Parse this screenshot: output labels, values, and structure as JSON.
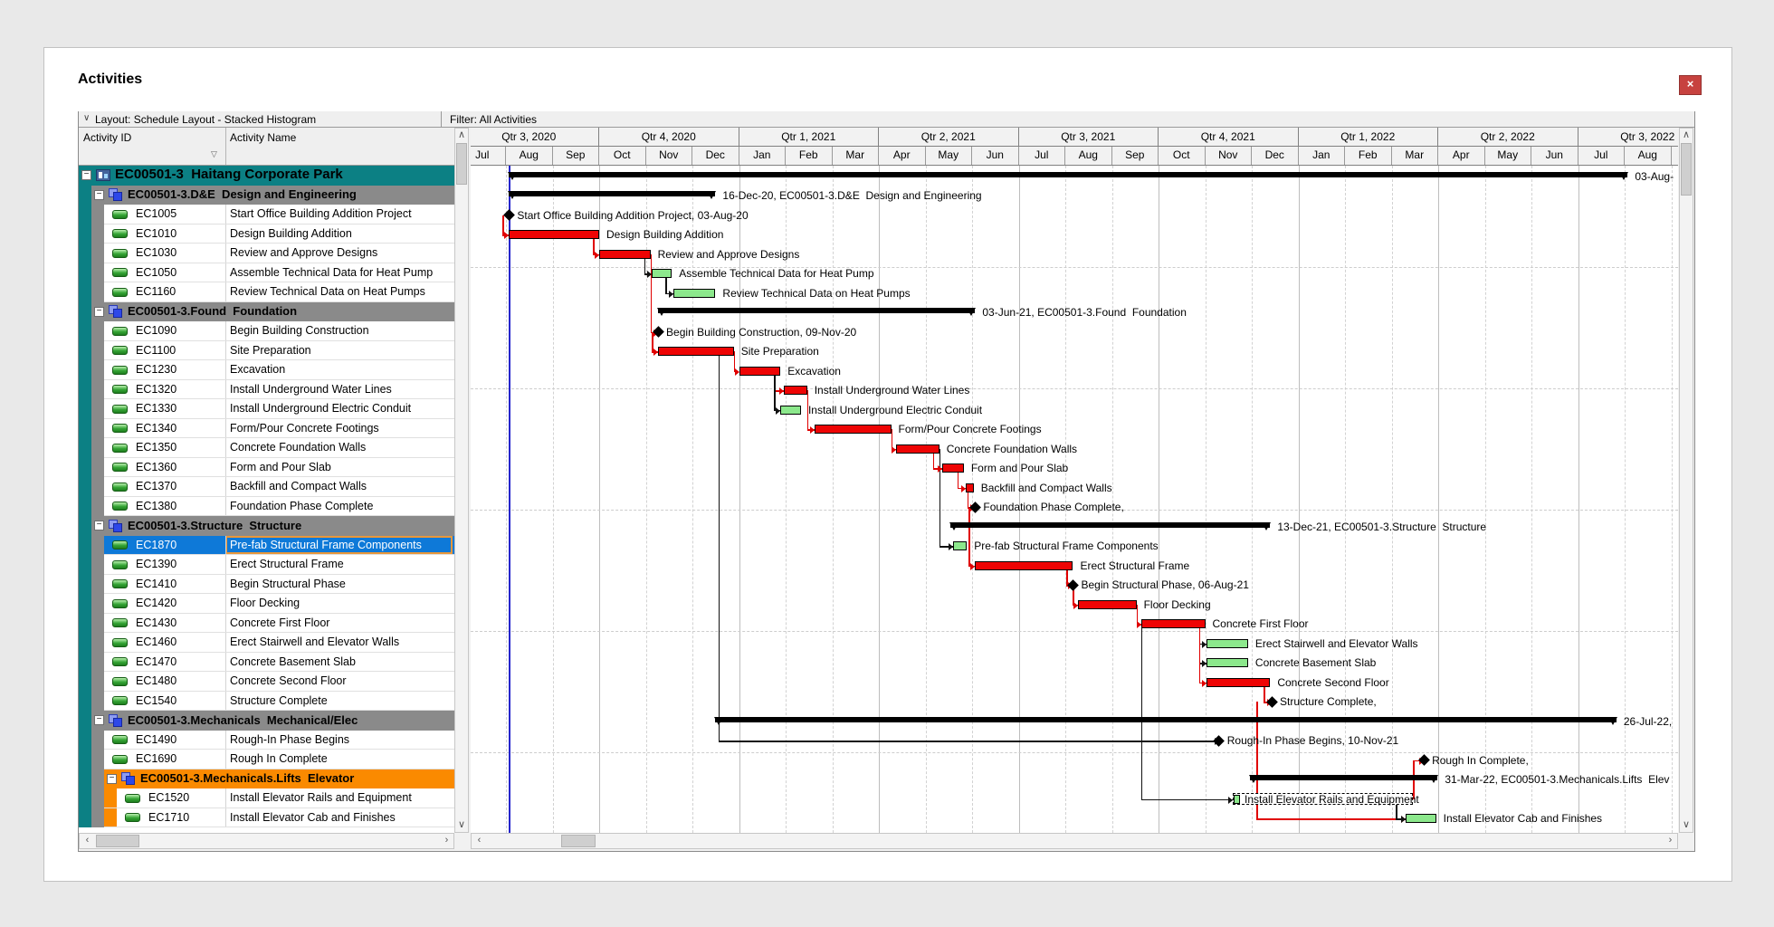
{
  "window": {
    "title": "Activities"
  },
  "glyphs": {
    "close_x": "×",
    "dropdown_chevron": "∨",
    "filter_triangle": "▽",
    "collapse_minus": "−",
    "scroll_up": "∧",
    "scroll_down": "∨",
    "scroll_left": "‹",
    "scroll_right": "›"
  },
  "toolbar": {
    "layout_label": "Layout: Schedule Layout - Stacked Histogram",
    "filter_label": "Filter: All Activities"
  },
  "table": {
    "columns": [
      "Activity ID",
      "Activity Name"
    ],
    "selected_activity": "EC1870"
  },
  "colors": {
    "teal_band": "#0c8084",
    "gray_band": "#8a8a8a",
    "orange_band": "#fa8a00",
    "selected_blue": "#0e79d8",
    "selected_border": "#e8973a",
    "bar_red": "#ee0404",
    "bar_green": "#8ce88c",
    "summary_black": "#000000",
    "data_date_blue": "#2626cc",
    "connector_red": "#e00000",
    "connector_black": "#111111"
  },
  "gantt": {
    "timescale": [
      {
        "label": "Qtr 3, 2020",
        "months": [
          "Jul",
          "Aug",
          "Sep"
        ]
      },
      {
        "label": "Qtr 4, 2020",
        "months": [
          "Oct",
          "Nov",
          "Dec"
        ]
      },
      {
        "label": "Qtr 1, 2021",
        "months": [
          "Jan",
          "Feb",
          "Mar"
        ]
      },
      {
        "label": "Qtr 2, 2021",
        "months": [
          "Apr",
          "May",
          "Jun"
        ]
      },
      {
        "label": "Qtr 3, 2021",
        "months": [
          "Jul",
          "Aug",
          "Sep"
        ]
      },
      {
        "label": "Qtr 4, 2021",
        "months": [
          "Oct",
          "Nov",
          "Dec"
        ]
      },
      {
        "label": "Qtr 1, 2022",
        "months": [
          "Jan",
          "Feb",
          "Mar"
        ]
      },
      {
        "label": "Qtr 2, 2022",
        "months": [
          "Apr",
          "May",
          "Jun"
        ]
      },
      {
        "label": "Qtr 3, 2022",
        "months": [
          "Jul",
          "Aug",
          "Sep"
        ]
      }
    ],
    "data_date": "2020-08-03"
  },
  "rows": [
    {
      "kind": "project",
      "id": "EC00501-3",
      "name": "Haitang Corporate Park",
      "bar": {
        "type": "summary",
        "start": "2020-08-03",
        "end": "2022-08-03",
        "label": "03-Aug-"
      }
    },
    {
      "kind": "wbs",
      "id": "EC00501-3.D&E",
      "name": "Design and Engineering",
      "bar": {
        "type": "summary",
        "start": "2020-08-03",
        "end": "2020-12-16",
        "label": "16-Dec-20, EC00501-3.D&E  Design and Engineering"
      }
    },
    {
      "kind": "act",
      "id": "EC1005",
      "name": "Start Office Building Addition Project",
      "bar": {
        "type": "milestone",
        "start": "2020-08-03",
        "label": "Start Office Building Addition Project, 03-Aug-20"
      }
    },
    {
      "kind": "act",
      "id": "EC1010",
      "name": "Design Building Addition",
      "bar": {
        "type": "bar",
        "color": "red",
        "start": "2020-08-03",
        "end": "2020-10-01",
        "label": "Design Building Addition"
      }
    },
    {
      "kind": "act",
      "id": "EC1030",
      "name": "Review and Approve Designs",
      "bar": {
        "type": "bar",
        "color": "red",
        "start": "2020-10-01",
        "end": "2020-11-04",
        "label": "Review and Approve Designs"
      }
    },
    {
      "kind": "act",
      "id": "EC1050",
      "name": "Assemble Technical Data for Heat Pump",
      "bar": {
        "type": "bar",
        "color": "green",
        "start": "2020-11-05",
        "end": "2020-11-18",
        "label": "Assemble Technical Data for Heat Pump"
      }
    },
    {
      "kind": "act",
      "id": "EC1160",
      "name": "Review Technical Data on Heat Pumps",
      "bar": {
        "type": "bar",
        "color": "green",
        "start": "2020-11-19",
        "end": "2020-12-16",
        "label": "Review Technical Data on Heat Pumps"
      }
    },
    {
      "kind": "wbs",
      "id": "EC00501-3.Found",
      "name": "Foundation",
      "bar": {
        "type": "summary",
        "start": "2020-11-09",
        "end": "2021-06-03",
        "label": "03-Jun-21, EC00501-3.Found  Foundation"
      }
    },
    {
      "kind": "act",
      "id": "EC1090",
      "name": "Begin Building Construction",
      "bar": {
        "type": "milestone",
        "start": "2020-11-09",
        "label": "Begin Building Construction, 09-Nov-20"
      }
    },
    {
      "kind": "act",
      "id": "EC1100",
      "name": "Site Preparation",
      "bar": {
        "type": "bar",
        "color": "red",
        "start": "2020-11-09",
        "end": "2020-12-28",
        "label": "Site Preparation"
      }
    },
    {
      "kind": "act",
      "id": "EC1230",
      "name": "Excavation",
      "bar": {
        "type": "bar",
        "color": "red",
        "start": "2021-01-01",
        "end": "2021-01-28",
        "label": "Excavation"
      }
    },
    {
      "kind": "act",
      "id": "EC1320",
      "name": "Install Underground Water Lines",
      "bar": {
        "type": "bar",
        "color": "red",
        "start": "2021-01-30",
        "end": "2021-02-15",
        "label": "Install Underground Water Lines"
      }
    },
    {
      "kind": "act",
      "id": "EC1330",
      "name": "Install Underground Electric Conduit",
      "bar": {
        "type": "bar",
        "color": "green",
        "start": "2021-01-28",
        "end": "2021-02-11",
        "label": "Install Underground Electric Conduit"
      }
    },
    {
      "kind": "act",
      "id": "EC1340",
      "name": "Form/Pour Concrete Footings",
      "bar": {
        "type": "bar",
        "color": "red",
        "start": "2021-02-20",
        "end": "2021-04-09",
        "label": "Form/Pour Concrete Footings"
      }
    },
    {
      "kind": "act",
      "id": "EC1350",
      "name": "Concrete Foundation Walls",
      "bar": {
        "type": "bar",
        "color": "red",
        "start": "2021-04-12",
        "end": "2021-05-10",
        "label": "Concrete Foundation Walls"
      }
    },
    {
      "kind": "act",
      "id": "EC1360",
      "name": "Form and Pour Slab",
      "bar": {
        "type": "bar",
        "color": "red",
        "start": "2021-05-12",
        "end": "2021-05-26",
        "label": "Form and Pour Slab"
      }
    },
    {
      "kind": "act",
      "id": "EC1370",
      "name": "Backfill and Compact Walls",
      "bar": {
        "type": "bar",
        "color": "red",
        "start": "2021-05-27",
        "end": "2021-06-02",
        "label": "Backfill and Compact Walls"
      }
    },
    {
      "kind": "act",
      "id": "EC1380",
      "name": "Foundation Phase Complete",
      "bar": {
        "type": "milestone",
        "start": "2021-06-03",
        "label": "Foundation Phase Complete,"
      }
    },
    {
      "kind": "wbs",
      "id": "EC00501-3.Structure",
      "name": "Structure",
      "bar": {
        "type": "summary",
        "start": "2021-05-17",
        "end": "2021-12-13",
        "label": "13-Dec-21, EC00501-3.Structure  Structure"
      }
    },
    {
      "kind": "act",
      "id": "EC1870",
      "name": "Pre-fab Structural Frame Components",
      "selected": true,
      "bar": {
        "type": "bar",
        "color": "green",
        "start": "2021-05-19",
        "end": "2021-05-28",
        "label": "Pre-fab Structural Frame Components"
      }
    },
    {
      "kind": "act",
      "id": "EC1390",
      "name": "Erect Structural Frame",
      "bar": {
        "type": "bar",
        "color": "red",
        "start": "2021-06-03",
        "end": "2021-08-06",
        "label": "Erect Structural Frame"
      }
    },
    {
      "kind": "act",
      "id": "EC1410",
      "name": "Begin Structural Phase",
      "bar": {
        "type": "milestone",
        "start": "2021-08-06",
        "label": "Begin Structural Phase, 06-Aug-21"
      }
    },
    {
      "kind": "act",
      "id": "EC1420",
      "name": "Floor Decking",
      "bar": {
        "type": "bar",
        "color": "red",
        "start": "2021-08-09",
        "end": "2021-09-17",
        "label": "Floor Decking"
      }
    },
    {
      "kind": "act",
      "id": "EC1430",
      "name": "Concrete First Floor",
      "bar": {
        "type": "bar",
        "color": "red",
        "start": "2021-09-20",
        "end": "2021-11-01",
        "label": "Concrete First Floor"
      }
    },
    {
      "kind": "act",
      "id": "EC1460",
      "name": "Erect Stairwell and Elevator Walls",
      "bar": {
        "type": "bar",
        "color": "green",
        "start": "2021-11-02",
        "end": "2021-11-29",
        "label": "Erect Stairwell and Elevator Walls"
      }
    },
    {
      "kind": "act",
      "id": "EC1470",
      "name": "Concrete Basement Slab",
      "bar": {
        "type": "bar",
        "color": "green",
        "start": "2021-11-02",
        "end": "2021-11-29",
        "label": "Concrete Basement Slab"
      }
    },
    {
      "kind": "act",
      "id": "EC1480",
      "name": "Concrete Second Floor",
      "bar": {
        "type": "bar",
        "color": "red",
        "start": "2021-11-02",
        "end": "2021-12-13",
        "label": "Concrete Second Floor"
      }
    },
    {
      "kind": "act",
      "id": "EC1540",
      "name": "Structure Complete",
      "bar": {
        "type": "milestone",
        "start": "2021-12-14",
        "label": "Structure Complete,"
      }
    },
    {
      "kind": "wbs",
      "id": "EC00501-3.Mechanicals",
      "name": "Mechanical/Elec",
      "bar": {
        "type": "summary",
        "start": "2020-12-16",
        "end": "2022-07-26",
        "label": "26-Jul-22,"
      }
    },
    {
      "kind": "act",
      "id": "EC1490",
      "name": "Rough-In Phase Begins",
      "bar": {
        "type": "milestone",
        "start": "2021-11-10",
        "label": "Rough-In Phase Begins, 10-Nov-21"
      }
    },
    {
      "kind": "act",
      "id": "EC1690",
      "name": "Rough In Complete",
      "bar": {
        "type": "milestone",
        "start": "2022-03-22",
        "label": "Rough In Complete,"
      }
    },
    {
      "kind": "wbs3",
      "id": "EC00501-3.Mechanicals.Lifts",
      "name": "Elevator",
      "bar": {
        "type": "summary",
        "start": "2021-11-30",
        "end": "2022-03-31",
        "label": "31-Mar-22, EC00501-3.Mechanicals.Lifts  Elev"
      }
    },
    {
      "kind": "act3",
      "id": "EC1520",
      "name": "Install Elevator Rails and Equipment",
      "bar": {
        "type": "dashed",
        "start": "2021-11-19",
        "end": "2022-03-15",
        "seg_end": "2021-11-22",
        "label": "Install Elevator Rails and Equipment"
      }
    },
    {
      "kind": "act3",
      "id": "EC1710",
      "name": "Install Elevator Cab and Finishes",
      "bar": {
        "type": "bar",
        "color": "green",
        "start": "2022-03-10",
        "end": "2022-03-30",
        "label": "Install Elevator Cab and Finishes"
      }
    }
  ],
  "connectors": [
    {
      "c": "red",
      "d1": "2020-08-03",
      "r1": 2,
      "d2": "2020-08-03",
      "r2": 3
    },
    {
      "c": "red",
      "d1": "2020-10-01",
      "r1": 3,
      "d2": "2020-10-01",
      "r2": 4
    },
    {
      "c": "black",
      "d1": "2020-11-04",
      "r1": 4,
      "d2": "2020-11-05",
      "r2": 5
    },
    {
      "c": "black",
      "d1": "2020-11-18",
      "r1": 5,
      "d2": "2020-11-19",
      "r2": 6
    },
    {
      "c": "red",
      "d1": "2020-11-04",
      "r1": 4,
      "d2": "2020-11-09",
      "r2": 8
    },
    {
      "c": "red",
      "d1": "2020-11-09",
      "r1": 8,
      "d2": "2020-11-09",
      "r2": 9
    },
    {
      "c": "red",
      "d1": "2020-12-28",
      "r1": 9,
      "d2": "2021-01-01",
      "r2": 10
    },
    {
      "c": "red",
      "d1": "2021-01-28",
      "r1": 10,
      "d2": "2021-01-30",
      "r2": 11
    },
    {
      "c": "black",
      "d1": "2021-01-28",
      "r1": 10,
      "d2": "2021-01-28",
      "r2": 12
    },
    {
      "c": "red",
      "d1": "2021-02-15",
      "r1": 11,
      "d2": "2021-02-20",
      "r2": 13
    },
    {
      "c": "red",
      "d1": "2021-04-09",
      "r1": 13,
      "d2": "2021-04-12",
      "r2": 14
    },
    {
      "c": "red",
      "d1": "2021-05-10",
      "r1": 14,
      "d2": "2021-05-12",
      "r2": 15
    },
    {
      "c": "red",
      "d1": "2021-05-26",
      "r1": 15,
      "d2": "2021-05-27",
      "r2": 16
    },
    {
      "c": "red",
      "d1": "2021-06-02",
      "r1": 16,
      "d2": "2021-06-03",
      "r2": 17
    },
    {
      "c": "black",
      "d1": "2020-12-18",
      "r1": 9,
      "d2": "2021-11-10",
      "r2": 29
    },
    {
      "c": "black",
      "d1": "2021-05-10",
      "r1": 14,
      "d2": "2021-05-19",
      "r2": 19
    },
    {
      "c": "red",
      "d1": "2021-06-03",
      "r1": 17,
      "d2": "2021-06-03",
      "r2": 20
    },
    {
      "c": "red",
      "d1": "2021-08-06",
      "r1": 20,
      "d2": "2021-08-06",
      "r2": 21
    },
    {
      "c": "red",
      "d1": "2021-08-06",
      "r1": 21,
      "d2": "2021-08-09",
      "r2": 22
    },
    {
      "c": "red",
      "d1": "2021-09-17",
      "r1": 22,
      "d2": "2021-09-20",
      "r2": 23
    },
    {
      "c": "black",
      "d1": "2021-11-01",
      "r1": 23,
      "d2": "2021-11-02",
      "r2": 24
    },
    {
      "c": "black",
      "d1": "2021-11-01",
      "r1": 23,
      "d2": "2021-11-02",
      "r2": 25
    },
    {
      "c": "red",
      "d1": "2021-11-01",
      "r1": 23,
      "d2": "2021-11-02",
      "r2": 26
    },
    {
      "c": "red",
      "d1": "2021-12-13",
      "r1": 26,
      "d2": "2021-12-14",
      "r2": 27
    },
    {
      "c": "black",
      "d1": "2021-09-20",
      "r1": 23,
      "d2": "2021-11-19",
      "r2": 32
    },
    {
      "c": "red",
      "d1": "2022-03-15",
      "r1": 32,
      "d2": "2022-03-22",
      "r2": 30
    },
    {
      "c": "red",
      "d1": "2021-12-04",
      "r1": 27,
      "d2": "2022-03-10",
      "r2": 33
    },
    {
      "c": "black",
      "d1": "2022-03-08",
      "r1": 32,
      "d2": "2022-03-10",
      "r2": 33
    }
  ],
  "scrollbars": {
    "table_h": true,
    "table_v": true,
    "gantt_h": true,
    "gantt_v": true
  }
}
